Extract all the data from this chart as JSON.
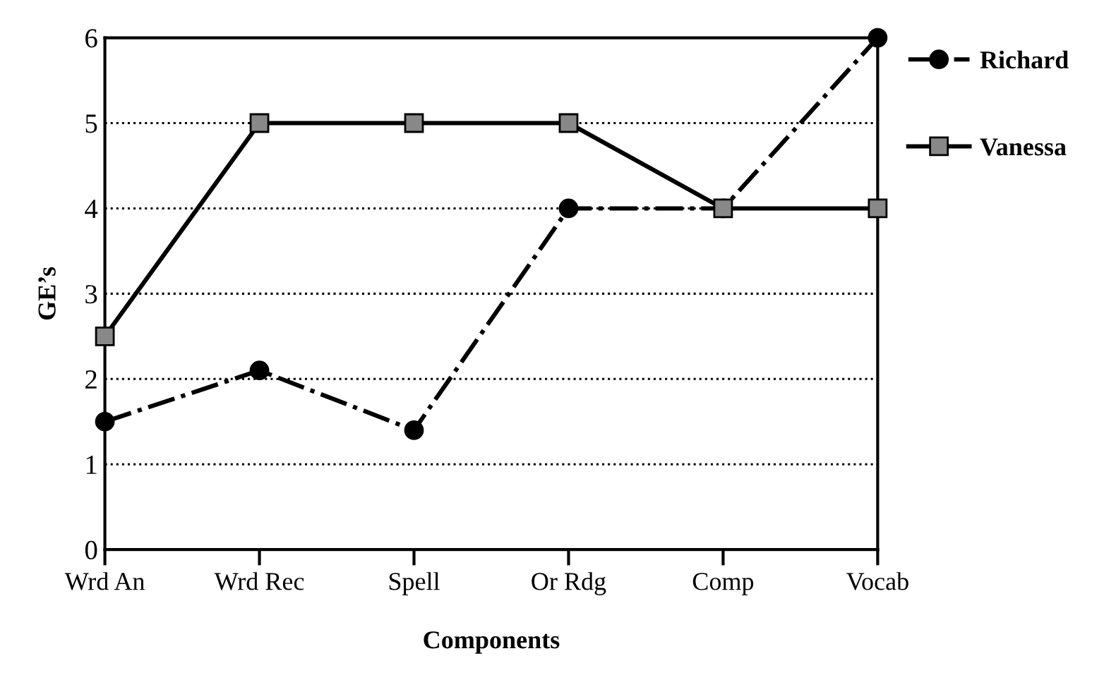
{
  "chart_data": {
    "type": "line",
    "xlabel": "Components",
    "ylabel": "GE’s",
    "categories": [
      "Wrd An",
      "Wrd Rec",
      "Spell",
      "Or Rdg",
      "Comp",
      "Vocab"
    ],
    "series": [
      {
        "name": "Richard",
        "color": "#000000",
        "values": [
          1.5,
          2.1,
          1.4,
          4,
          4,
          6
        ],
        "marker": "circle",
        "line_style": "dashdot"
      },
      {
        "name": "Vanessa",
        "color": "#000000",
        "values": [
          2.5,
          5,
          5,
          5,
          4,
          4
        ],
        "marker": "square",
        "line_style": "solid"
      }
    ],
    "ylim": [
      0,
      6
    ],
    "yticks": [
      0,
      1,
      2,
      3,
      4,
      5,
      6
    ],
    "grid": "y",
    "legend": "right"
  }
}
